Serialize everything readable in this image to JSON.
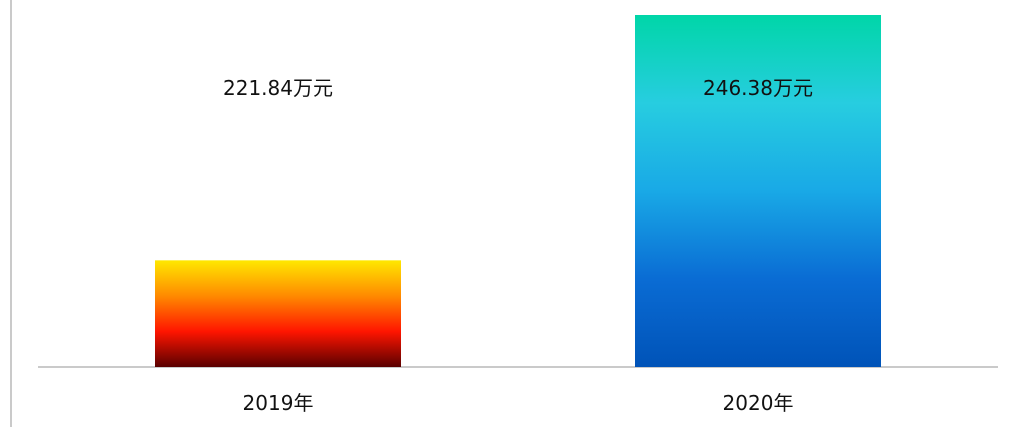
{
  "chart_data": {
    "type": "bar",
    "categories": [
      "2019年",
      "2020年"
    ],
    "values": [
      221.84,
      246.38
    ],
    "value_labels": [
      "221.84万元",
      "246.38万元"
    ],
    "title": "",
    "xlabel": "",
    "ylabel": "",
    "ylim": [
      211.17,
      246.38
    ],
    "grid": false,
    "legend": "none",
    "bar_gradients": [
      [
        "#FFE800",
        "#FF8A00",
        "#FF1500",
        "#5A0000"
      ],
      [
        "#00D6A8",
        "#27CDE0",
        "#19A9E6",
        "#0A6CD4",
        "#0053B8"
      ]
    ],
    "axis_color": "#B8B8B8"
  }
}
